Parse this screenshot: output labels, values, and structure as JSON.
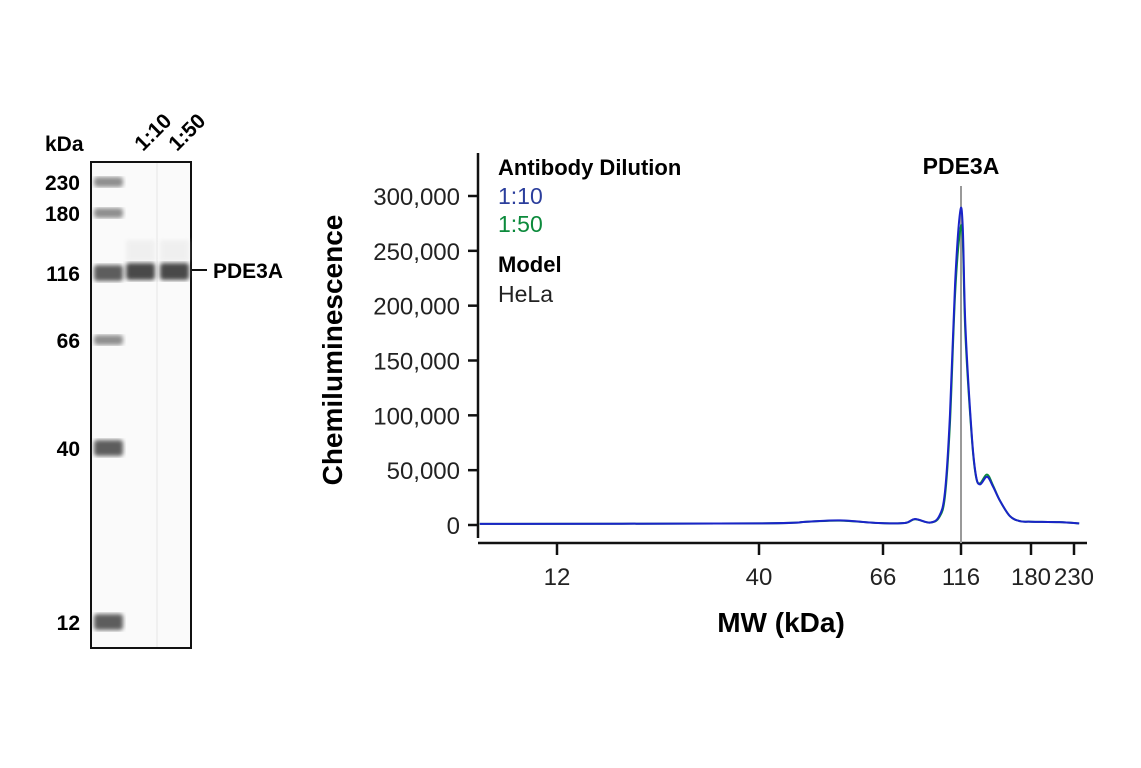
{
  "chart_data": [
    {
      "type": "gel",
      "y_unit_label": "kDa",
      "lane_labels": [
        "1:10",
        "1:50"
      ],
      "ladder": [
        230,
        180,
        116,
        66,
        40,
        12
      ],
      "band_label": "PDE3A",
      "band_kda": 116,
      "colors": {
        "band": "#4a4a4a",
        "ladder": "#555555"
      }
    },
    {
      "type": "line",
      "title": "PDE3A",
      "xlabel": "MW (kDa)",
      "ylabel": "Chemiluminescence",
      "xticks": [
        12,
        40,
        66,
        116,
        180,
        230
      ],
      "yticks": [
        0,
        50000,
        100000,
        150000,
        200000,
        250000,
        300000
      ],
      "ytick_labels": [
        "0",
        "50,000",
        "100,000",
        "150,000",
        "200,000",
        "250,000",
        "300,000"
      ],
      "ylim": [
        0,
        300000
      ],
      "marker_kda": 116,
      "legend": {
        "heading": "Antibody Dilution",
        "model_heading": "Model",
        "model": "HeLa"
      },
      "series": [
        {
          "name": "1:10",
          "color": "#2b3e9c",
          "x": [
            1.3,
            40,
            50,
            57,
            65,
            80,
            86.5,
            96,
            102,
            105.7,
            108.9,
            112.2,
            115.4,
            117.6,
            120.1,
            126,
            129.7,
            133.4,
            139.8,
            145.3,
            151.7,
            160.8,
            170,
            180,
            213,
            236
          ],
          "y": [
            1000,
            1500,
            3000,
            4200,
            1800,
            1800,
            5500,
            2200,
            8000,
            30000,
            100000,
            220000,
            285000,
            272000,
            180000,
            80000,
            45000,
            37000,
            44000,
            35000,
            22000,
            8000,
            3500,
            3000,
            2600,
            1500
          ]
        },
        {
          "name": "1:50",
          "color": "#0c8a3c",
          "x": [
            1.3,
            40,
            50,
            57,
            65,
            80,
            86.5,
            96,
            102,
            105.7,
            108.9,
            112.2,
            115.4,
            117.6,
            120.1,
            126,
            129.7,
            133.4,
            139.8,
            145.3,
            151.7,
            160.8,
            170,
            180,
            213,
            236
          ],
          "y": [
            1000,
            1500,
            3000,
            4000,
            1800,
            1800,
            5200,
            2200,
            7000,
            26000,
            92000,
            210000,
            268000,
            260000,
            172000,
            78000,
            44000,
            38000,
            46000,
            36000,
            22000,
            8000,
            3500,
            3000,
            2600,
            1500
          ]
        }
      ]
    }
  ]
}
